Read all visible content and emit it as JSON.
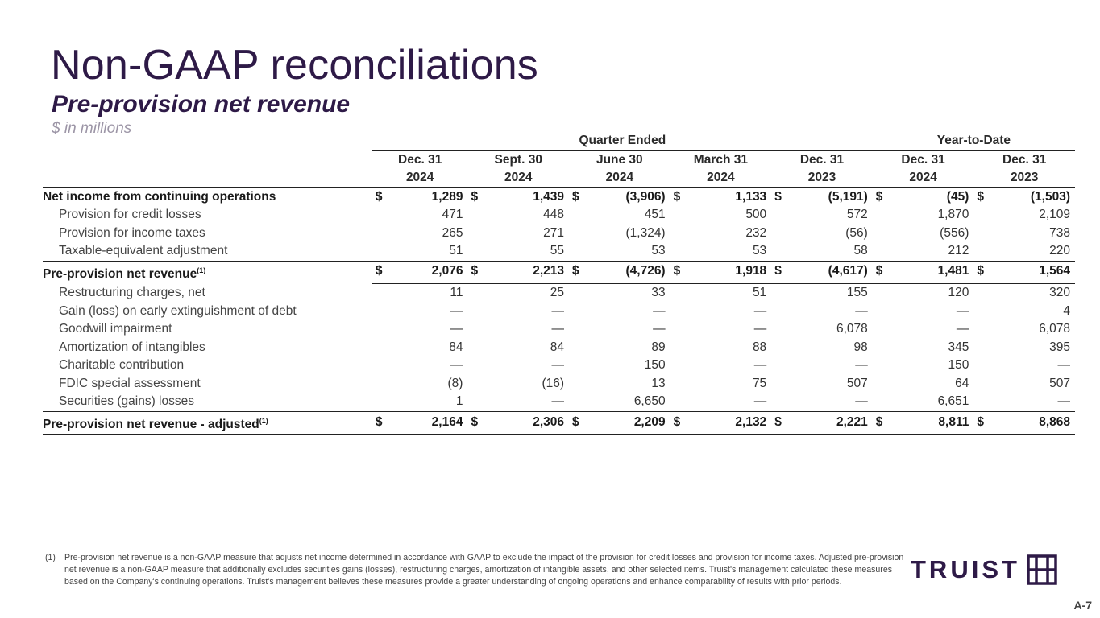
{
  "title": "Non-GAAP reconciliations",
  "subtitle": "Pre-provision net revenue",
  "units": "$ in millions",
  "groups": {
    "quarter": "Quarter Ended",
    "ytd": "Year-to-Date"
  },
  "columns": [
    {
      "month": "Dec. 31",
      "year": "2024"
    },
    {
      "month": "Sept. 30",
      "year": "2024"
    },
    {
      "month": "June 30",
      "year": "2024"
    },
    {
      "month": "March 31",
      "year": "2024"
    },
    {
      "month": "Dec. 31",
      "year": "2023"
    },
    {
      "month": "Dec. 31",
      "year": "2024"
    },
    {
      "month": "Dec. 31",
      "year": "2023"
    }
  ],
  "currency_symbol": "$",
  "rows": [
    {
      "label": "Net income from continuing operations",
      "values": [
        "1,289",
        "1,439",
        "(3,906)",
        "1,133",
        "(5,191)",
        "(45)",
        "(1,503)"
      ]
    },
    {
      "label": "Provision for credit losses",
      "values": [
        "471",
        "448",
        "451",
        "500",
        "572",
        "1,870",
        "2,109"
      ]
    },
    {
      "label": "Provision for income taxes",
      "values": [
        "265",
        "271",
        "(1,324)",
        "232",
        "(56)",
        "(556)",
        "738"
      ]
    },
    {
      "label": "Taxable-equivalent adjustment",
      "values": [
        "51",
        "55",
        "53",
        "53",
        "58",
        "212",
        "220"
      ]
    },
    {
      "label": "Pre-provision net revenue",
      "sup": "(1)",
      "values": [
        "2,076",
        "2,213",
        "(4,726)",
        "1,918",
        "(4,617)",
        "1,481",
        "1,564"
      ]
    },
    {
      "label": "Restructuring charges, net",
      "values": [
        "11",
        "25",
        "33",
        "51",
        "155",
        "120",
        "320"
      ]
    },
    {
      "label": "Gain (loss) on early extinguishment of debt",
      "values": [
        "—",
        "—",
        "—",
        "—",
        "—",
        "—",
        "4"
      ]
    },
    {
      "label": "Goodwill impairment",
      "values": [
        "—",
        "—",
        "—",
        "—",
        "6,078",
        "—",
        "6,078"
      ]
    },
    {
      "label": "Amortization of intangibles",
      "values": [
        "84",
        "84",
        "89",
        "88",
        "98",
        "345",
        "395"
      ]
    },
    {
      "label": "Charitable contribution",
      "values": [
        "—",
        "—",
        "150",
        "—",
        "—",
        "150",
        "—"
      ]
    },
    {
      "label": "FDIC special assessment",
      "values": [
        "(8)",
        "(16)",
        "13",
        "75",
        "507",
        "64",
        "507"
      ]
    },
    {
      "label": "Securities (gains) losses",
      "values": [
        "1",
        "—",
        "6,650",
        "—",
        "—",
        "6,651",
        "—"
      ]
    },
    {
      "label": "Pre-provision net revenue - adjusted",
      "sup": "(1)",
      "values": [
        "2,164",
        "2,306",
        "2,209",
        "2,132",
        "2,221",
        "8,811",
        "8,868"
      ]
    }
  ],
  "footnote": {
    "mark": "(1)",
    "text": "Pre-provision net revenue is a non-GAAP measure that adjusts net income determined in accordance with GAAP to exclude the impact of the provision for credit losses and provision for income taxes. Adjusted pre-provision net revenue is a non-GAAP measure that additionally excludes securities gains (losses), restructuring charges, amortization of intangible assets, and other selected items. Truist's management calculated these measures based on the Company's continuing operations. Truist's management believes these measures provide a greater understanding of ongoing operations and enhance comparability of results with prior periods."
  },
  "logo_text": "TRUIST",
  "page_number": "A-7"
}
